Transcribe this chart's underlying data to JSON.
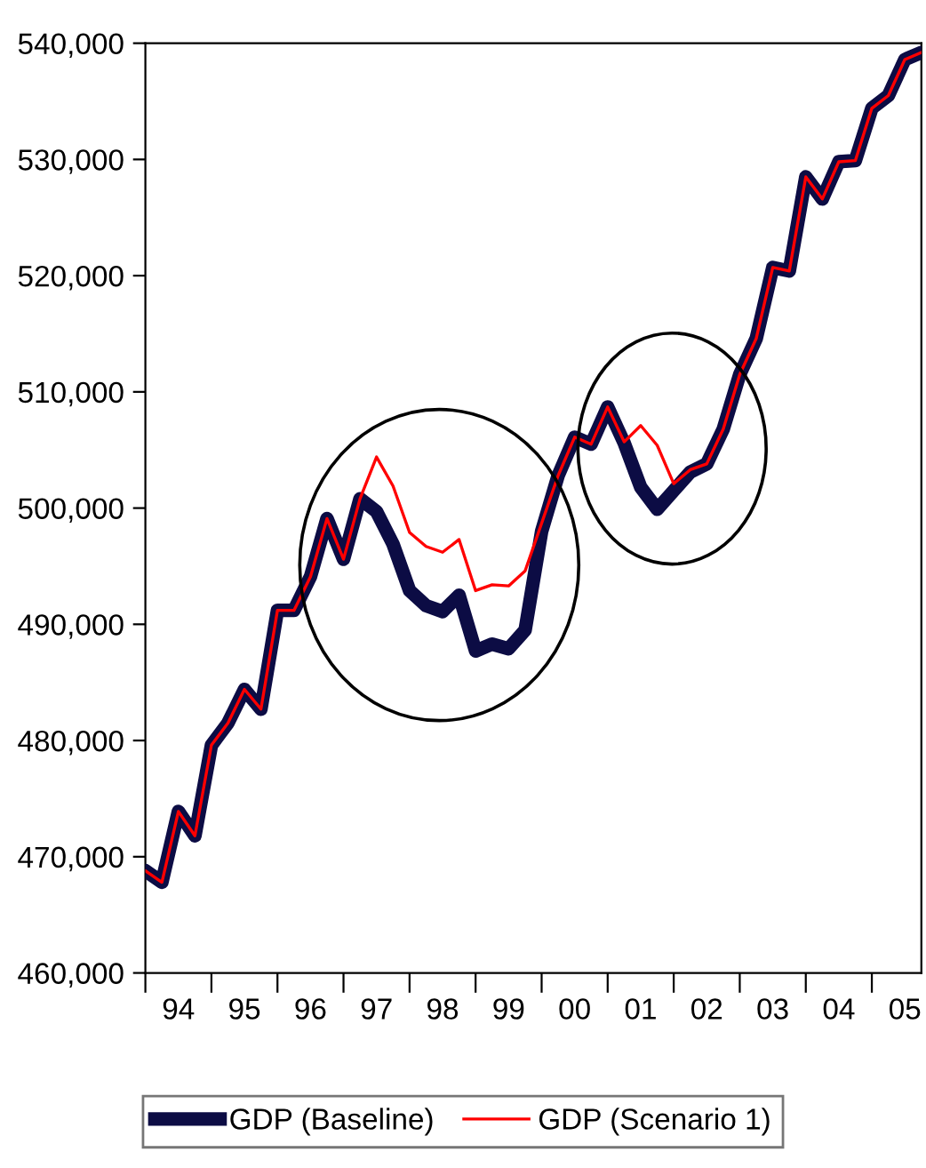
{
  "chart_data": {
    "type": "line",
    "categories": [
      null,
      null,
      "94",
      null,
      null,
      null,
      "95",
      null,
      null,
      null,
      "96",
      null,
      null,
      null,
      "97",
      null,
      null,
      null,
      "98",
      null,
      null,
      null,
      "99",
      null,
      null,
      null,
      "00",
      null,
      null,
      null,
      "01",
      null,
      null,
      null,
      "02",
      null,
      null,
      null,
      "03",
      null,
      null,
      null,
      "04",
      null,
      null,
      null,
      "05",
      null
    ],
    "series": [
      {
        "name": "GDP (Baseline)",
        "color": "#0c0c44",
        "values": [
          468800,
          467800,
          473900,
          471800,
          479600,
          481500,
          484400,
          482700,
          491200,
          491200,
          494100,
          499100,
          495600,
          500800,
          499700,
          496900,
          492900,
          491600,
          491100,
          492500,
          487700,
          488300,
          487900,
          489500,
          498000,
          502800,
          506100,
          505500,
          508700,
          505600,
          501800,
          499900,
          501500,
          503100,
          503800,
          506800,
          511500,
          514600,
          520700,
          520400,
          528500,
          526600,
          529800,
          529900,
          534400,
          535500,
          538600,
          539200
        ]
      },
      {
        "name": "GDP (Scenario 1)",
        "color": "#ff0000",
        "values": [
          468800,
          467800,
          473900,
          471800,
          479600,
          481500,
          484400,
          482700,
          491200,
          491200,
          494100,
          499100,
          495600,
          500800,
          504400,
          501900,
          497900,
          496700,
          496200,
          497300,
          492900,
          493400,
          493300,
          494600,
          498700,
          502800,
          506100,
          505500,
          508700,
          505700,
          507100,
          505400,
          502100,
          503300,
          503800,
          506800,
          511500,
          514600,
          520700,
          520400,
          528500,
          526600,
          529800,
          529900,
          534400,
          535500,
          538600,
          539200
        ]
      }
    ],
    "ylim": [
      460000,
      540000
    ],
    "yticks": [
      {
        "value": 460000,
        "label": "460,000"
      },
      {
        "value": 470000,
        "label": "470,000"
      },
      {
        "value": 480000,
        "label": "480,000"
      },
      {
        "value": 490000,
        "label": "490,000"
      },
      {
        "value": 500000,
        "label": "500,000"
      },
      {
        "value": 510000,
        "label": "510,000"
      },
      {
        "value": 520000,
        "label": "520,000"
      },
      {
        "value": 530000,
        "label": "530,000"
      },
      {
        "value": 540000,
        "label": "540,000"
      }
    ],
    "grid": false,
    "legend": "bottom"
  }
}
